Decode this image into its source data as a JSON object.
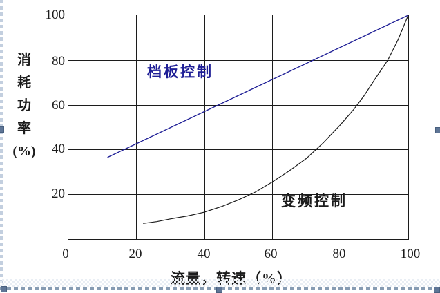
{
  "chart_data": {
    "type": "line",
    "title": "",
    "xlabel": "流量，转速（%）",
    "ylabel": "消耗功率(%)",
    "ylabel_stack": [
      "消",
      "耗",
      "功",
      "率",
      "(%)"
    ],
    "xlim": [
      0,
      100
    ],
    "ylim": [
      0,
      100
    ],
    "xticks": [
      0,
      20,
      40,
      60,
      80,
      100
    ],
    "yticks": [
      100,
      80,
      60,
      40,
      20
    ],
    "grid": true,
    "legend_position": "in-plot annotations",
    "series": [
      {
        "name": "档板控制",
        "color": "#1f1f96",
        "stroke_width": 1.4,
        "points": [
          [
            11.5,
            36.5
          ],
          [
            100,
            100
          ]
        ]
      },
      {
        "name": "变频控制",
        "color": "#1c1c1c",
        "stroke_width": 1.2,
        "points": [
          [
            22,
            7
          ],
          [
            26,
            7.8
          ],
          [
            30,
            9
          ],
          [
            35,
            10.3
          ],
          [
            40,
            12
          ],
          [
            45,
            14.5
          ],
          [
            50,
            17.5
          ],
          [
            55,
            21
          ],
          [
            60,
            25.5
          ],
          [
            65,
            30.5
          ],
          [
            70,
            36
          ],
          [
            75,
            43
          ],
          [
            80,
            51
          ],
          [
            84,
            58
          ],
          [
            87,
            64
          ],
          [
            90,
            71
          ],
          [
            94,
            80
          ],
          [
            97,
            89
          ],
          [
            100,
            100
          ]
        ]
      }
    ]
  },
  "editor_chrome": {
    "selected": true,
    "handle_color": "#5e7596",
    "border_dash_color": "#879cb3"
  }
}
